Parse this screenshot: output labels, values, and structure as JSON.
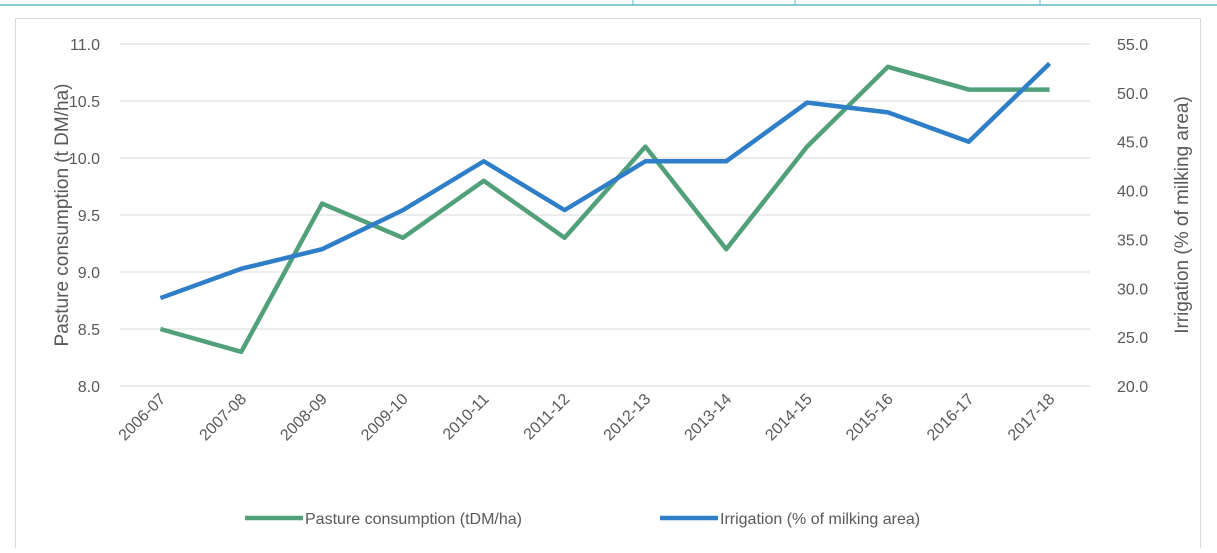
{
  "chart_data": {
    "type": "line",
    "ylabel": "Pasture  consumption (t DM/ha)",
    "y2label": "Irrigation (% of milking area)",
    "categories": [
      "2006-07",
      "2007-08",
      "2008-09",
      "2009-10",
      "2010-11",
      "2011-12",
      "2012-13",
      "2013-14",
      "2014-15",
      "2015-16",
      "2016-17",
      "2017-18"
    ],
    "series": [
      {
        "name": "Pasture consumption (tDM/ha)",
        "color": "#52a07a",
        "values": [
          8.5,
          8.3,
          9.6,
          9.3,
          9.8,
          9.3,
          10.1,
          9.2,
          10.1,
          10.8,
          10.6,
          10.6
        ]
      },
      {
        "name": "Irrigation (% of milking area)",
        "color": "#2e7fc8",
        "axis": "y2",
        "values": [
          29,
          32,
          34,
          38,
          43,
          38,
          43,
          43,
          49,
          48,
          45,
          53
        ]
      }
    ],
    "ylim": [
      8,
      11
    ],
    "yticks": [
      {
        "value": 8,
        "label": "8.0"
      },
      {
        "value": 8.5,
        "label": "8.5"
      },
      {
        "value": 9,
        "label": "9.0"
      },
      {
        "value": 9.5,
        "label": "9.5"
      },
      {
        "value": 10,
        "label": "10.0"
      },
      {
        "value": 10.5,
        "label": "10.5"
      },
      {
        "value": 11,
        "label": "11.0"
      }
    ],
    "y2lim": [
      20,
      55
    ],
    "y2ticks": [
      {
        "value": 20,
        "label": "20.0"
      },
      {
        "value": 25,
        "label": "25.0"
      },
      {
        "value": 30,
        "label": "30.0"
      },
      {
        "value": 35,
        "label": "35.0"
      },
      {
        "value": 40,
        "label": "40.0"
      },
      {
        "value": 45,
        "label": "45.0"
      },
      {
        "value": 50,
        "label": "50.0"
      },
      {
        "value": 55,
        "label": "55.0"
      }
    ],
    "grid": true,
    "legend": "bottom"
  }
}
